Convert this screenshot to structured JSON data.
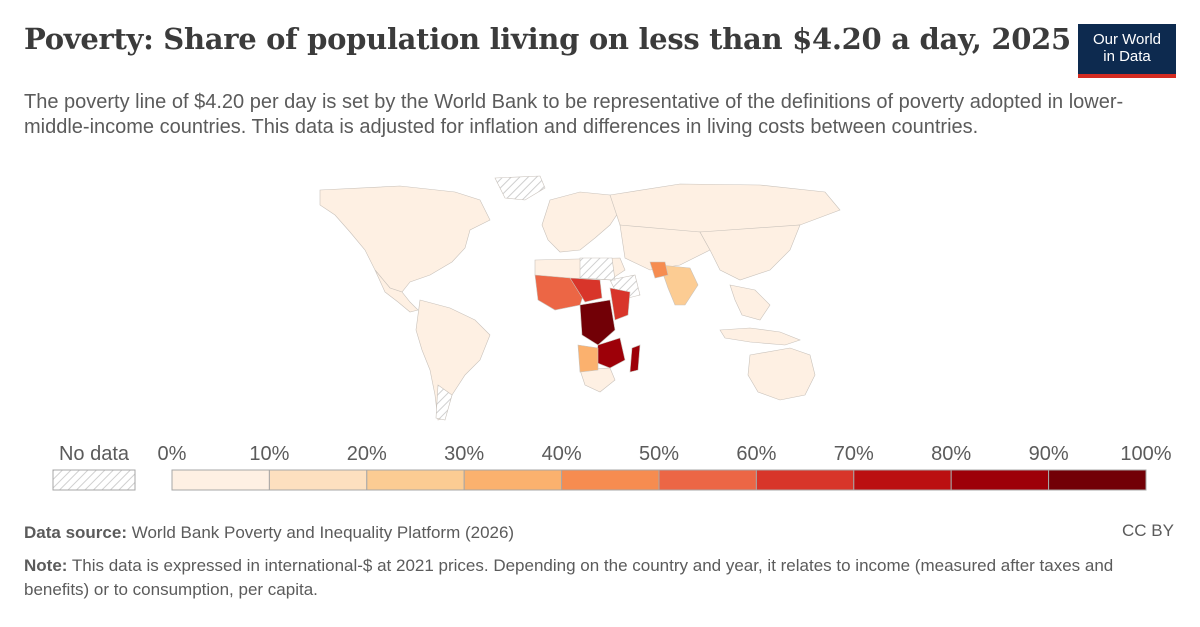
{
  "header": {
    "title": "Poverty: Share of population living on less than $4.20 a day, 2025",
    "subtitle": "The poverty line of $4.20 per day is set by the World Bank to be representative of the definitions of poverty adopted in lower-middle-income countries. This data is adjusted for inflation and differences in living costs between countries.",
    "logo_line1": "Our World",
    "logo_line2": "in Data"
  },
  "colors": {
    "logo_bg": "#0d2a4f",
    "logo_accent": "#d42b21",
    "no_data_hatch": "#cfcfcf",
    "land_low": "#fef0e3"
  },
  "chart_data": {
    "type": "choropleth map",
    "year": "2025",
    "legend": {
      "no_data_label": "No data",
      "ticks": [
        "0%",
        "10%",
        "20%",
        "30%",
        "40%",
        "50%",
        "60%",
        "70%",
        "80%",
        "90%",
        "100%"
      ],
      "bins": [
        {
          "from": 0,
          "to": 10,
          "color": "#fef0e3"
        },
        {
          "from": 10,
          "to": 20,
          "color": "#fde0bf"
        },
        {
          "from": 20,
          "to": 30,
          "color": "#fccc93"
        },
        {
          "from": 30,
          "to": 40,
          "color": "#fbb16e"
        },
        {
          "from": 40,
          "to": 50,
          "color": "#f68c50"
        },
        {
          "from": 50,
          "to": 60,
          "color": "#ec6645"
        },
        {
          "from": 60,
          "to": 70,
          "color": "#d8352a"
        },
        {
          "from": 70,
          "to": 80,
          "color": "#bb0f11"
        },
        {
          "from": 80,
          "to": 90,
          "color": "#9d0008"
        },
        {
          "from": 90,
          "to": 100,
          "color": "#720006"
        }
      ]
    }
  },
  "footer": {
    "source_label": "Data source:",
    "source_text": "World Bank Poverty and Inequality Platform (2026)",
    "note_label": "Note:",
    "note_text": "This data is expressed in international-$ at 2021 prices. Depending on the country and year, it relates to income (measured after taxes and benefits) or to consumption, per capita.",
    "license": "CC BY"
  }
}
